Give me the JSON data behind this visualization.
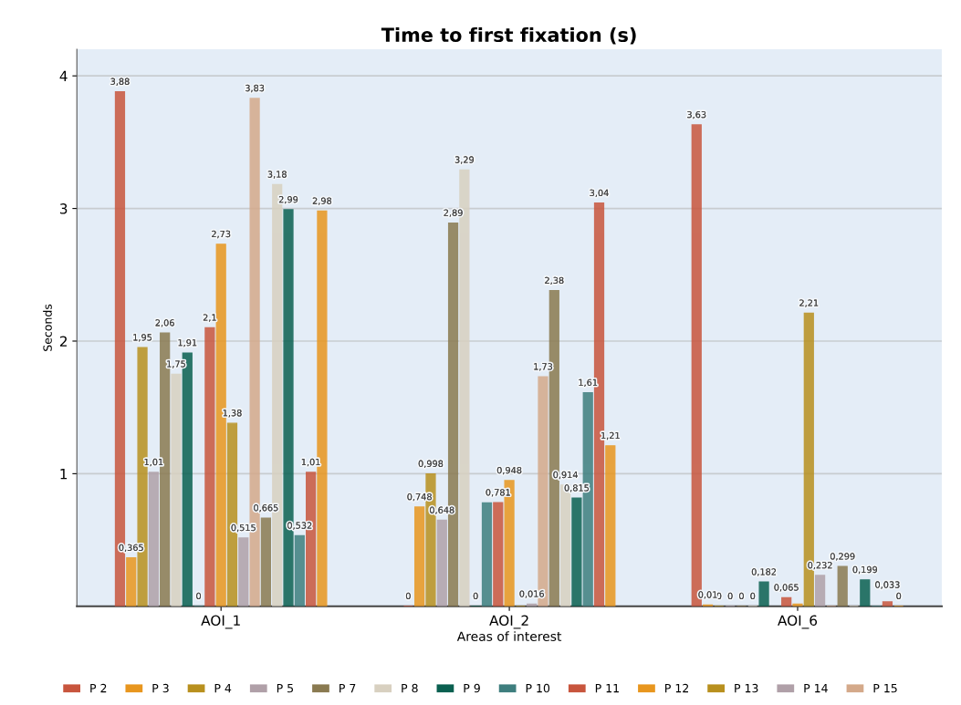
{
  "chart_data": {
    "type": "bar",
    "title": "Time to first fixation (s)",
    "xlabel": "Areas of interest",
    "ylabel": "Seconds",
    "categories": [
      "AOI_1",
      "AOI_2",
      "AOI_6"
    ],
    "ylim": [
      0,
      4.2
    ],
    "yticks": [
      1,
      2,
      3,
      4
    ],
    "grid": "y",
    "legend": "bottom",
    "series": [
      {
        "name": "P 2",
        "color": "#c8553d",
        "values": [
          3.88,
          0,
          3.63
        ],
        "value_labels": [
          "3,88",
          "0",
          "3,63"
        ]
      },
      {
        "name": "P 3",
        "color": "#e8961e",
        "values": [
          0.365,
          0.748,
          0.01
        ],
        "value_labels": [
          "0,365",
          "0,748",
          "0,01"
        ]
      },
      {
        "name": "P 4",
        "color": "#b8901e",
        "values": [
          1.95,
          0.998,
          0
        ],
        "value_labels": [
          "1,95",
          "0,998",
          "0"
        ]
      },
      {
        "name": "P 5",
        "color": "#b0a0a8",
        "values": [
          1.01,
          0.648,
          0
        ],
        "value_labels": [
          "1,01",
          "0,648",
          "0"
        ]
      },
      {
        "name": "P 7",
        "color": "#8a7a50",
        "values": [
          2.06,
          2.89,
          0
        ],
        "value_labels": [
          "2,06",
          "2,89",
          "0"
        ]
      },
      {
        "name": "P 8",
        "color": "#d8d0c0",
        "values": [
          1.75,
          3.29,
          0
        ],
        "value_labels": [
          "1,75",
          "3,29",
          "0"
        ]
      },
      {
        "name": "P 9",
        "color": "#0a6050",
        "values": [
          1.91,
          0,
          0.182
        ],
        "value_labels": [
          "1,91",
          "0",
          "0,182"
        ]
      },
      {
        "name": "P 10",
        "color": "#3e7e7e",
        "values": [
          0,
          0.78,
          null
        ],
        "value_labels": [
          "0",
          null,
          null
        ]
      },
      {
        "name": "P 11",
        "color": "#c8553d",
        "values": [
          2.1,
          0.781,
          0.065
        ],
        "value_labels": [
          "2,1",
          "0,781",
          "0,065"
        ]
      },
      {
        "name": "P 12",
        "color": "#e8961e",
        "values": [
          2.73,
          0.948,
          0.016
        ],
        "value_labels": [
          "2,73",
          "0,948",
          null
        ]
      },
      {
        "name": "P 13",
        "color": "#b8901e",
        "values": [
          1.38,
          0,
          2.21
        ],
        "value_labels": [
          "1,38",
          null,
          "2,21"
        ]
      },
      {
        "name": "P 14",
        "color": "#b0a0a8",
        "values": [
          0.515,
          0.016,
          0.232
        ],
        "value_labels": [
          "0,515",
          "0,016",
          "0,232"
        ]
      },
      {
        "name": "P 15",
        "color": "#d4a98a",
        "values": [
          3.83,
          1.73,
          0
        ],
        "value_labels": [
          "3,83",
          "1,73",
          null
        ]
      },
      {
        "color": "#8a7a50",
        "values": [
          0.665,
          2.38,
          0.299
        ],
        "value_labels": [
          "0,665",
          "2,38",
          "0,299"
        ]
      },
      {
        "color": "#d8d0c0",
        "values": [
          3.18,
          0.914,
          0
        ],
        "value_labels": [
          "3,18",
          "0,914",
          null
        ]
      },
      {
        "color": "#0a6050",
        "values": [
          2.99,
          0.815,
          0.199
        ],
        "value_labels": [
          "2,99",
          "0,815",
          "0,199"
        ]
      },
      {
        "color": "#3e7e7e",
        "values": [
          0.532,
          1.61,
          0
        ],
        "value_labels": [
          "0,532",
          "1,61",
          null
        ]
      },
      {
        "color": "#c8553d",
        "values": [
          1.01,
          3.04,
          0.033
        ],
        "value_labels": [
          "1,01",
          "3,04",
          "0,033"
        ]
      },
      {
        "color": "#e8961e",
        "values": [
          2.98,
          1.21,
          0
        ],
        "value_labels": [
          "2,98",
          "1,21",
          "0"
        ]
      }
    ]
  }
}
